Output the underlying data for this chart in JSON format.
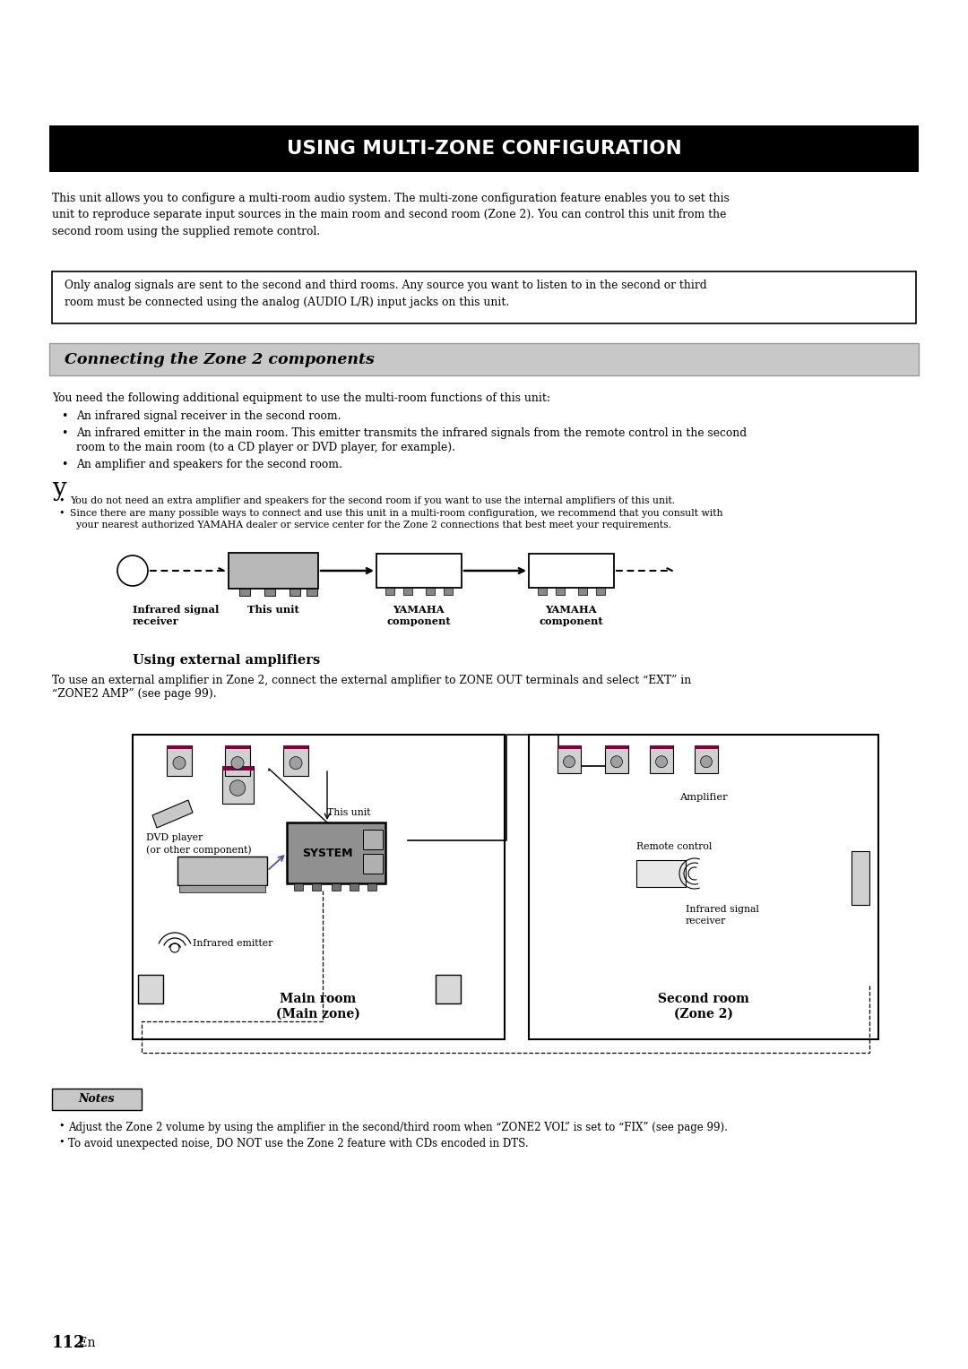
{
  "title": "USING MULTI-ZONE CONFIGURATION",
  "page_bg": "#ffffff",
  "body_text1": "This unit allows you to configure a multi-room audio system. The multi-zone configuration feature enables you to set this\nunit to reproduce separate input sources in the main room and second room (Zone 2). You can control this unit from the\nsecond room using the supplied remote control.",
  "note_box_text": "Only analog signals are sent to the second and third rooms. Any source you want to listen to in the second or third\nroom must be connected using the analog (AUDIO L/R) input jacks on this unit.",
  "section_title": "Connecting the Zone 2 components",
  "body_text2": "You need the following additional equipment to use the multi-room functions of this unit:",
  "bullet1": "An infrared signal receiver in the second room.",
  "bullet2a": "An infrared emitter in the main room. This emitter transmits the infrared signals from the remote control in the second",
  "bullet2b": "room to the main room (to a CD player or DVD player, for example).",
  "bullet3": "An amplifier and speakers for the second room.",
  "note_char": "y",
  "note_b1": "You do not need an extra amplifier and speakers for the second room if you want to use the internal amplifiers of this unit.",
  "note_b2a": "Since there are many possible ways to connect and use this unit in a multi-room configuration, we recommend that you consult with",
  "note_b2b": "  your nearest authorized YAMAHA dealer or service center for the Zone 2 connections that best meet your requirements.",
  "diag1_labels": [
    "Infrared signal\nreceiver",
    "This unit",
    "YAMAHA\ncomponent",
    "YAMAHA\ncomponent"
  ],
  "subsection_title": "Using external amplifiers",
  "ext_amp_text1": "To use an external amplifier in Zone 2, connect the external amplifier to ZONE OUT terminals and select “EXT” in",
  "ext_amp_text2": "“ZONE2 AMP” (see page 99).",
  "main_room_label": "Main room",
  "main_room_label2": "(Main zone)",
  "second_room_label": "Second room",
  "second_room_label2": "(Zone 2)",
  "dvd_label1": "DVD player",
  "dvd_label2": "(or other component)",
  "this_unit_label": "This unit",
  "amplifier_label": "Amplifier",
  "remote_label": "Remote control",
  "ir_receiver_label1": "Infrared signal",
  "ir_receiver_label2": "receiver",
  "ir_emitter_label": "Infrared emitter",
  "notes_title": "Notes",
  "notes_b1": "Adjust the Zone 2 volume by using the amplifier in the second/third room when “ZONE2 VOL” is set to “FIX” (see page 99).",
  "notes_b2": "To avoid unexpected noise, DO NOT use the Zone 2 feature with CDs encoded in DTS.",
  "page_number": "112",
  "page_en": " En"
}
